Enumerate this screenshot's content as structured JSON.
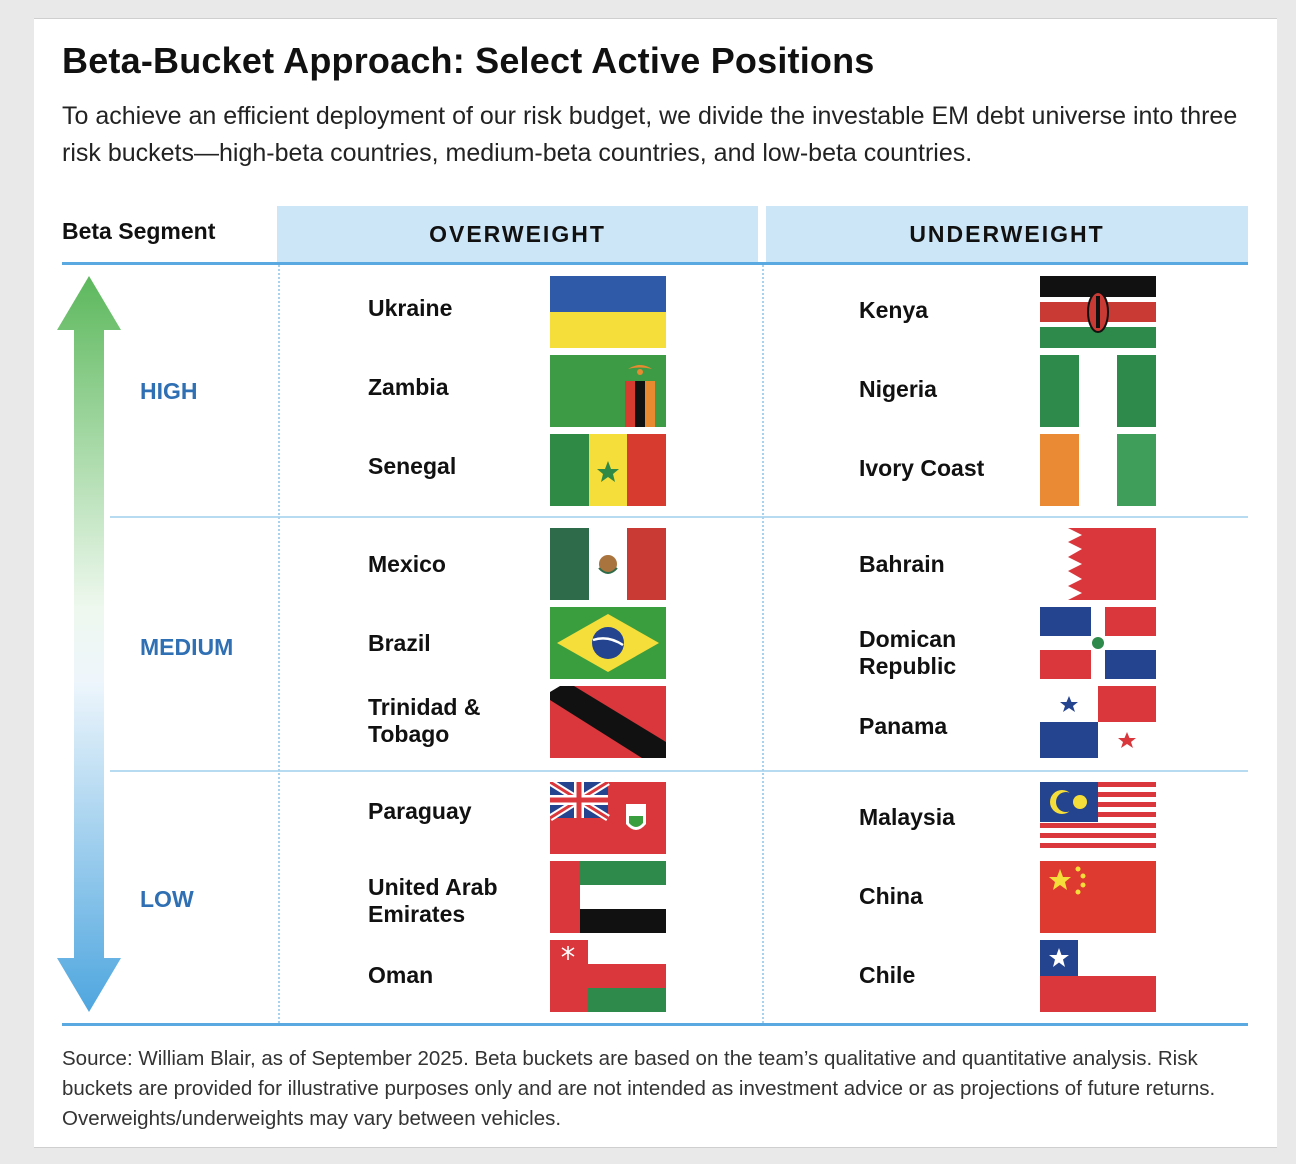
{
  "title": "Beta-Bucket Approach: Select Active Positions",
  "subtitle": "To achieve an efficient deployment of our risk budget, we divide the investable EM debt universe into three risk buckets—high-beta countries, medium-beta countries, and low-beta countries.",
  "segment_header": "Beta Segment",
  "overweight_header": "OVERWEIGHT",
  "underweight_header": "UNDERWEIGHT",
  "segments": {
    "high": "HIGH",
    "medium": "MEDIUM",
    "low": "LOW"
  },
  "overweight": {
    "ukraine": "Ukraine",
    "zambia": "Zambia",
    "senegal": "Senegal",
    "mexico": "Mexico",
    "brazil": "Brazil",
    "trinidad_l1": "Trinidad &",
    "trinidad_l2": "Tobago",
    "paraguay": "Paraguay",
    "uae_l1": "United Arab",
    "uae_l2": "Emirates",
    "oman": "Oman"
  },
  "underweight": {
    "kenya": "Kenya",
    "nigeria": "Nigeria",
    "ivory_coast": "Ivory Coast",
    "bahrain": "Bahrain",
    "dominican_l1": "Domican",
    "dominican_l2": "Republic",
    "panama": "Panama",
    "malaysia": "Malaysia",
    "china": "China",
    "chile": "Chile"
  },
  "colors": {
    "header_bg": "#cde6f7",
    "rule": "#5aa9e0",
    "segment_label": "#2f6fb3",
    "arrow_top": "#5cb85c",
    "arrow_bottom": "#4ea6df"
  },
  "footnote": "Source: William Blair, as of September 2025. Beta buckets are based on the team’s qualitative and quantitative analysis. Risk buckets are provided for illustrative purposes only and are not intended as investment advice or as projections of future returns. Overweights/underweights may vary between vehicles."
}
